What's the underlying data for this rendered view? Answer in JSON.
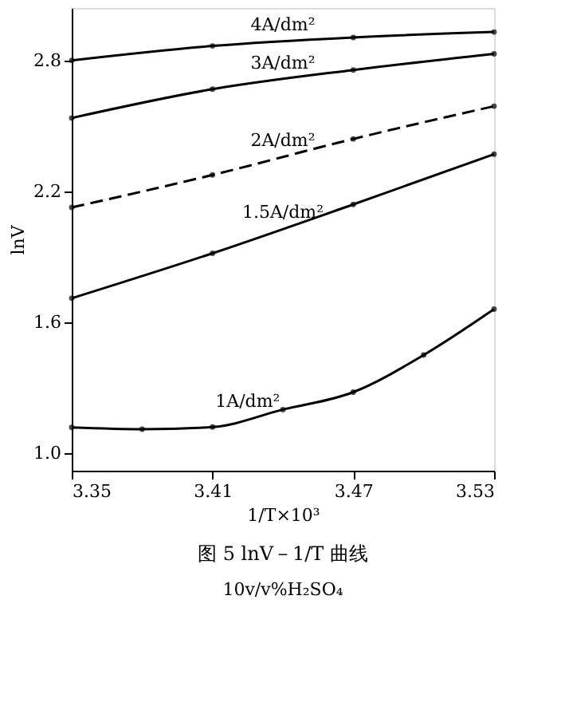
{
  "chart_data": {
    "type": "line",
    "title": "图 5  lnV－1/T 曲线",
    "subtitle": "10v/v%H₂SO₄",
    "xlabel": "1/T×10³",
    "ylabel": "lnV",
    "xlim": [
      3.35,
      3.53
    ],
    "xticks": [
      3.35,
      3.41,
      3.47,
      3.53
    ],
    "ylim": [
      0.92,
      3.04
    ],
    "yticks": [
      {
        "value": 1.0,
        "label": "1.0"
      },
      {
        "value": 1.6,
        "label": "1.6"
      },
      {
        "value": 2.2,
        "label": "2.2"
      },
      {
        "value": 2.8,
        "label": "2.8"
      }
    ],
    "grid": false,
    "marker": "circle",
    "series": [
      {
        "name": "4A/dm²",
        "color": "#000000",
        "line_style": "solid",
        "x": [
          3.35,
          3.41,
          3.47,
          3.53
        ],
        "values": [
          2.8,
          2.866,
          2.905,
          2.93
        ]
      },
      {
        "name": "3A/dm²",
        "color": "#000000",
        "line_style": "solid",
        "x": [
          3.35,
          3.41,
          3.47,
          3.53
        ],
        "values": [
          2.536,
          2.668,
          2.756,
          2.83
        ]
      },
      {
        "name": "2A/dm²",
        "color": "#000000",
        "line_style": "dashed",
        "x": [
          3.35,
          3.41,
          3.47,
          3.53
        ],
        "values": [
          2.126,
          2.275,
          2.44,
          2.59
        ]
      },
      {
        "name": "1.5A/dm²",
        "color": "#000000",
        "line_style": "solid",
        "x": [
          3.35,
          3.41,
          3.47,
          3.53
        ],
        "values": [
          1.71,
          1.916,
          2.14,
          2.37
        ]
      },
      {
        "name": "1A/dm²",
        "color": "#000000",
        "line_style": "solid",
        "x": [
          3.35,
          3.38,
          3.41,
          3.44,
          3.47,
          3.5,
          3.53
        ],
        "values": [
          1.118,
          1.11,
          1.12,
          1.2,
          1.28,
          1.45,
          1.66
        ]
      }
    ]
  }
}
